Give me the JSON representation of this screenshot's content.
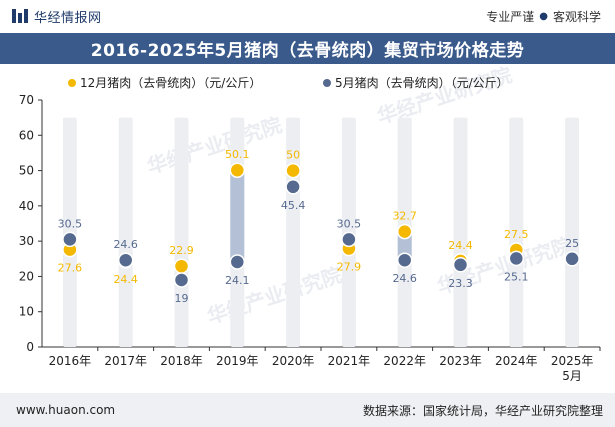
{
  "header": {
    "brand": "华经情报网",
    "slogan_left": "专业严谨",
    "slogan_sep": "●",
    "slogan_right": "客观科学"
  },
  "title": "2016-2025年5月猪肉（去骨统肉）集贸市场价格走势",
  "footer": {
    "url": "www.huaon.com",
    "source": "数据来源：国家统计局，华经产业研究院整理"
  },
  "watermark": "华经产业研究院",
  "colors": {
    "dec_series": "#f5b800",
    "may_series": "#56698f",
    "column_bg": "#eceef2",
    "range_bar": "#b3c0d6",
    "title_bg": "#3a5a8c"
  },
  "chart_data": {
    "type": "scatter",
    "title": "2016-2025年5月猪肉（去骨统肉）集贸市场价格走势",
    "categories": [
      "2016年",
      "2017年",
      "2018年",
      "2019年",
      "2020年",
      "2021年",
      "2022年",
      "2023年",
      "2024年",
      "2025年5月"
    ],
    "ylim": [
      0,
      70
    ],
    "yticks": [
      0,
      10,
      20,
      30,
      40,
      50,
      60,
      70
    ],
    "legend_position": "top",
    "series": [
      {
        "name": "12月猪肉（去骨统肉）（元/公斤）",
        "values": [
          27.6,
          24.4,
          22.9,
          50.1,
          50,
          27.9,
          32.7,
          24.4,
          27.5,
          null
        ]
      },
      {
        "name": "5月猪肉（去骨统肉）（元/公斤）",
        "values": [
          30.5,
          24.6,
          19,
          24.1,
          45.4,
          30.5,
          24.6,
          23.3,
          25.1,
          25
        ]
      }
    ]
  }
}
